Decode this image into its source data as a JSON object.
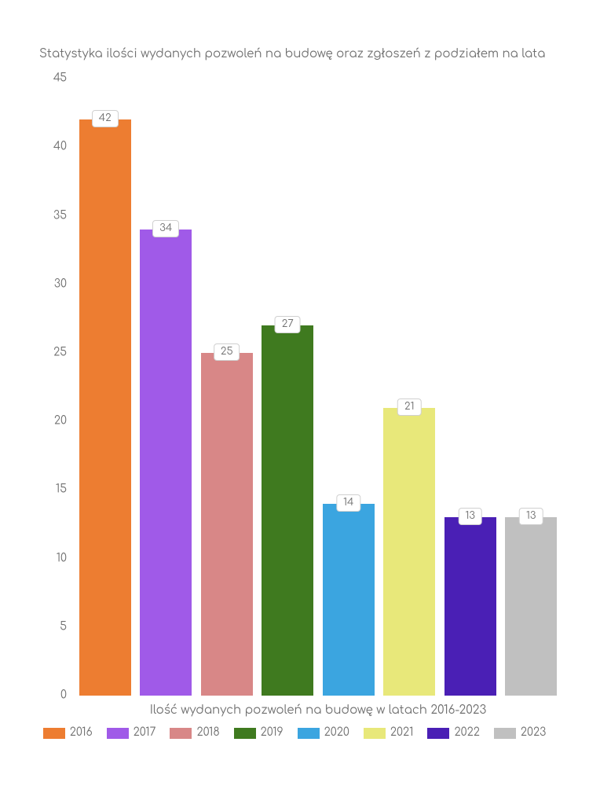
{
  "chart": {
    "type": "bar",
    "title": "Statystyka ilości wydanych pozwoleń na budowę oraz zgłoszeń z podziałem na lata",
    "x_axis_label": "Ilość wydanych pozwoleń na budowę w latach 2016-2023",
    "title_fontsize": 15,
    "label_fontsize": 15,
    "tick_fontsize": 14,
    "background_color": "#ffffff",
    "text_color": "#707070",
    "ylim": [
      0,
      45
    ],
    "ytick_step": 5,
    "yticks": [
      "0",
      "5",
      "10",
      "15",
      "20",
      "25",
      "30",
      "35",
      "40",
      "45"
    ],
    "bar_width_ratio": 0.85,
    "series": [
      {
        "label": "2016",
        "value": 42,
        "color": "#ed7d31"
      },
      {
        "label": "2017",
        "value": 34,
        "color": "#a05ae8"
      },
      {
        "label": "2018",
        "value": 25,
        "color": "#d88787"
      },
      {
        "label": "2019",
        "value": 27,
        "color": "#3f7a1f"
      },
      {
        "label": "2020",
        "value": 14,
        "color": "#3ba5e0"
      },
      {
        "label": "2021",
        "value": 21,
        "color": "#e8e87a"
      },
      {
        "label": "2022",
        "value": 13,
        "color": "#4a1fb5"
      },
      {
        "label": "2023",
        "value": 13,
        "color": "#c0c0c0"
      }
    ]
  }
}
